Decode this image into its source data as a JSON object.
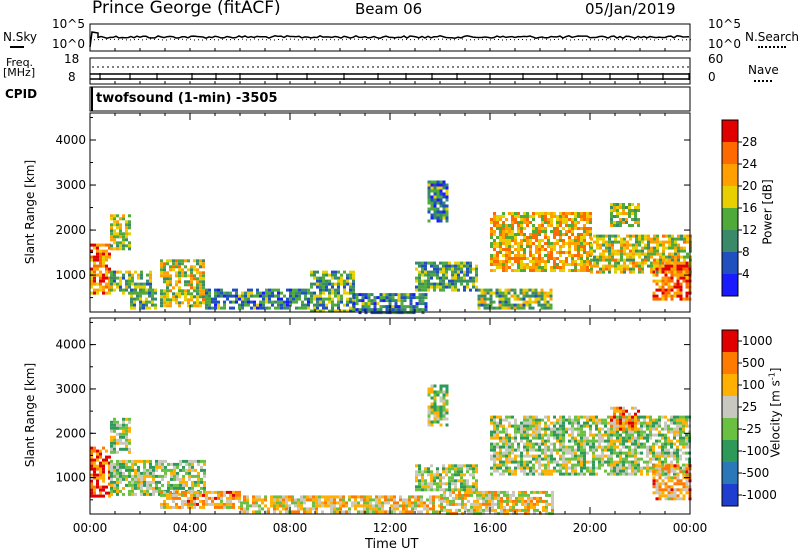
{
  "header": {
    "station": "Prince George (fitACF)",
    "beam": "Beam 06",
    "date": "05/Jan/2019"
  },
  "noise_panel": {
    "left_label": "N.Sky",
    "left_ticks": [
      "10^5",
      "10^0"
    ],
    "right_label": "N.Search",
    "right_ticks": [
      "10^5",
      "10^0"
    ]
  },
  "freq_panel": {
    "left_label_1": "Freq.",
    "left_label_2": "[MHz]",
    "left_ticks": [
      "18",
      "8"
    ],
    "right_label": "Nave",
    "right_ticks": [
      "60",
      "0"
    ]
  },
  "cpid_panel": {
    "label": "CPID",
    "program": "twofsound (1-min) -3505"
  },
  "time_ticks": [
    "00:00",
    "04:00",
    "08:00",
    "12:00",
    "16:00",
    "20:00",
    "00:00"
  ],
  "xlabel": "Time UT",
  "chart_data": [
    {
      "type": "heatmap",
      "name": "power",
      "ylabel": "Slant Range [km]",
      "yticks": [
        "1000",
        "2000",
        "3000",
        "4000"
      ],
      "ylim": [
        180,
        4600
      ],
      "xlim_hours": [
        0,
        24
      ],
      "colorbar_label": "Power [dB]",
      "colorbar_ticks": [
        "4",
        "8",
        "12",
        "16",
        "20",
        "24",
        "28"
      ],
      "colorbar_colors": [
        "#1a1aff",
        "#2050c0",
        "#3a8a6a",
        "#4faa3a",
        "#e8d000",
        "#ffa000",
        "#ff6a00",
        "#e00000"
      ],
      "regions": [
        {
          "t": [
            0.0,
            0.8
          ],
          "r": [
            600,
            1700
          ],
          "level": 0.75
        },
        {
          "t": [
            0.8,
            1.6
          ],
          "r": [
            1600,
            2350
          ],
          "level": 0.5
        },
        {
          "t": [
            0.8,
            2.4
          ],
          "r": [
            600,
            1100
          ],
          "level": 0.45
        },
        {
          "t": [
            1.6,
            2.6
          ],
          "r": [
            250,
            700
          ],
          "level": 0.4
        },
        {
          "t": [
            2.8,
            4.6
          ],
          "r": [
            350,
            1350
          ],
          "level": 0.55
        },
        {
          "t": [
            4.6,
            8.8
          ],
          "r": [
            250,
            700
          ],
          "level": 0.3
        },
        {
          "t": [
            8.8,
            10.5
          ],
          "r": [
            200,
            1100
          ],
          "level": 0.4
        },
        {
          "t": [
            10.5,
            13.5
          ],
          "r": [
            200,
            600
          ],
          "level": 0.3
        },
        {
          "t": [
            13.5,
            14.3
          ],
          "r": [
            2200,
            3100
          ],
          "level": 0.3
        },
        {
          "t": [
            13.0,
            15.5
          ],
          "r": [
            700,
            1300
          ],
          "level": 0.4
        },
        {
          "t": [
            15.5,
            18.5
          ],
          "r": [
            300,
            700
          ],
          "level": 0.45
        },
        {
          "t": [
            16.0,
            20.0
          ],
          "r": [
            1100,
            2400
          ],
          "level": 0.65
        },
        {
          "t": [
            20.0,
            24.0
          ],
          "r": [
            1100,
            1900
          ],
          "level": 0.55
        },
        {
          "t": [
            20.8,
            22.0
          ],
          "r": [
            2100,
            2600
          ],
          "level": 0.5
        },
        {
          "t": [
            22.5,
            24.0
          ],
          "r": [
            500,
            1300
          ],
          "level": 0.8
        }
      ]
    },
    {
      "type": "heatmap",
      "name": "velocity",
      "ylabel": "Slant Range [km]",
      "yticks": [
        "1000",
        "2000",
        "3000",
        "4000"
      ],
      "ylim": [
        180,
        4600
      ],
      "xlim_hours": [
        0,
        24
      ],
      "colorbar_label": "Velocity [m s^-1]",
      "colorbar_ticks": [
        "1000",
        "500",
        "100",
        "25",
        "-25",
        "-100",
        "-500",
        "-1000"
      ],
      "colorbar_colors": [
        "#1f3ecf",
        "#2a78b8",
        "#2e9a5a",
        "#6ac040",
        "#c8c8c0",
        "#ffb000",
        "#ff7a00",
        "#e00000"
      ],
      "regions": [
        {
          "t": [
            0.0,
            0.8
          ],
          "r": [
            600,
            1700
          ],
          "level": 0.85
        },
        {
          "t": [
            0.8,
            1.6
          ],
          "r": [
            1600,
            2350
          ],
          "level": 0.5
        },
        {
          "t": [
            0.8,
            4.6
          ],
          "r": [
            600,
            1400
          ],
          "level": 0.5
        },
        {
          "t": [
            2.8,
            6.0
          ],
          "r": [
            350,
            700
          ],
          "level": 0.68
        },
        {
          "t": [
            6.0,
            14.0
          ],
          "r": [
            200,
            600
          ],
          "level": 0.62
        },
        {
          "t": [
            14.0,
            18.5
          ],
          "r": [
            200,
            700
          ],
          "level": 0.6
        },
        {
          "t": [
            13.5,
            14.3
          ],
          "r": [
            2200,
            3100
          ],
          "level": 0.5
        },
        {
          "t": [
            13.0,
            15.5
          ],
          "r": [
            700,
            1300
          ],
          "level": 0.5
        },
        {
          "t": [
            16.0,
            24.0
          ],
          "r": [
            1100,
            2400
          ],
          "level": 0.5
        },
        {
          "t": [
            20.8,
            22.0
          ],
          "r": [
            2100,
            2600
          ],
          "level": 0.75
        },
        {
          "t": [
            22.5,
            24.0
          ],
          "r": [
            500,
            1300
          ],
          "level": 0.7
        }
      ]
    }
  ]
}
